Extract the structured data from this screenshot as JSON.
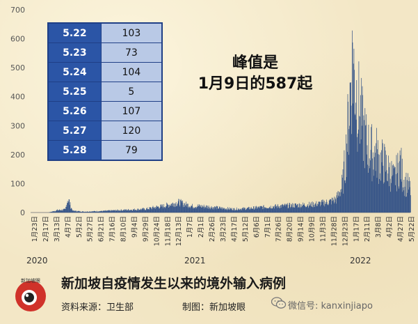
{
  "chart_data": {
    "type": "bar",
    "title": "新加坡自疫情发生以来的境外输入病例",
    "ylim": [
      0,
      700
    ],
    "yticks": [
      0,
      100,
      200,
      300,
      400,
      500,
      600,
      700
    ],
    "xticks": [
      "1月23日",
      "2月17日",
      "3月13日",
      "4月7日",
      "5月2日",
      "5月27日",
      "6月21日",
      "7月16日",
      "8月10日",
      "9月4日",
      "9月29日",
      "10月24日",
      "11月18日",
      "12月13日",
      "1月7日",
      "2月1日",
      "2月26日",
      "3月23日",
      "4月17日",
      "5月12日",
      "6月6日",
      "7月1日",
      "7月26日",
      "8月20日",
      "9月14日",
      "10月9日",
      "11月3日",
      "11月28日",
      "12月23日",
      "1月17日",
      "2月11日",
      "3月8日",
      "4月2日",
      "4月27日",
      "5月22日"
    ],
    "years": [
      "2020",
      "2021",
      "2022"
    ],
    "series_profile": [
      [
        0,
        0
      ],
      [
        40,
        0
      ],
      [
        60,
        8
      ],
      [
        78,
        10
      ],
      [
        80,
        25
      ],
      [
        83,
        45
      ],
      [
        87,
        38
      ],
      [
        90,
        20
      ],
      [
        95,
        6
      ],
      [
        120,
        3
      ],
      [
        160,
        5
      ],
      [
        200,
        8
      ],
      [
        230,
        10
      ],
      [
        260,
        12
      ],
      [
        280,
        18
      ],
      [
        300,
        22
      ],
      [
        320,
        30
      ],
      [
        335,
        35
      ],
      [
        350,
        28
      ],
      [
        365,
        22
      ],
      [
        380,
        22
      ],
      [
        400,
        20
      ],
      [
        430,
        15
      ],
      [
        460,
        12
      ],
      [
        490,
        14
      ],
      [
        520,
        18
      ],
      [
        560,
        22
      ],
      [
        600,
        25
      ],
      [
        640,
        28
      ],
      [
        670,
        35
      ],
      [
        690,
        45
      ],
      [
        700,
        80
      ],
      [
        705,
        120
      ],
      [
        710,
        200
      ],
      [
        715,
        300
      ],
      [
        719,
        400
      ],
      [
        723,
        520
      ],
      [
        727,
        587
      ],
      [
        731,
        540
      ],
      [
        735,
        480
      ],
      [
        740,
        420
      ],
      [
        745,
        380
      ],
      [
        750,
        330
      ],
      [
        755,
        300
      ],
      [
        760,
        260
      ],
      [
        765,
        250
      ],
      [
        770,
        240
      ],
      [
        775,
        220
      ],
      [
        780,
        240
      ],
      [
        785,
        210
      ],
      [
        790,
        200
      ],
      [
        795,
        200
      ],
      [
        800,
        190
      ],
      [
        805,
        170
      ],
      [
        810,
        160
      ],
      [
        815,
        150
      ],
      [
        820,
        130
      ],
      [
        825,
        150
      ],
      [
        830,
        170
      ],
      [
        835,
        200
      ],
      [
        840,
        140
      ],
      [
        845,
        120
      ],
      [
        850,
        110
      ],
      [
        855,
        100
      ],
      [
        858,
        90
      ]
    ],
    "peak_value": 587
  },
  "table": [
    {
      "date": "5.22",
      "value": "103"
    },
    {
      "date": "5.23",
      "value": "73"
    },
    {
      "date": "5.24",
      "value": "104"
    },
    {
      "date": "5.25",
      "value": "5"
    },
    {
      "date": "5.26",
      "value": "107"
    },
    {
      "date": "5.27",
      "value": "120"
    },
    {
      "date": "5.28",
      "value": "79"
    }
  ],
  "peak_annotation": [
    "峰值是",
    "1月9日的587起"
  ],
  "footer": {
    "title": "新加坡自疫情发生以来的境外输入病例",
    "source": "资料来源：卫生部",
    "credit": "制图：新加坡眼",
    "wechat": "微信号: kanxinjiapo",
    "logo_text": "新加坡眼"
  },
  "colors": {
    "bar": "#2f4f86",
    "table_dark": "#2b55a6",
    "table_light": "#b9c9e6"
  }
}
